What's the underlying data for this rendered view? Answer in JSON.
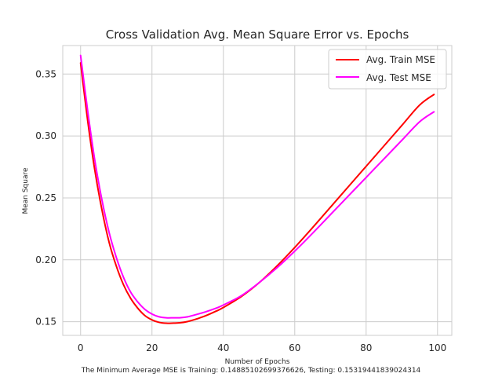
{
  "chart_data": {
    "type": "line",
    "title": "Cross Validation Avg. Mean Square Error vs. Epochs",
    "xlabel": "Number of Epochs",
    "ylabel": "Mean Square",
    "footnote": "The Minimum Average MSE is Training: 0.14885102699376626, Testing: 0.15319441839024314",
    "xlim": [
      -5,
      104
    ],
    "ylim": [
      0.139,
      0.373
    ],
    "xticks": [
      0,
      20,
      40,
      60,
      80,
      100
    ],
    "xtick_labels": [
      "0",
      "20",
      "40",
      "60",
      "80",
      "100"
    ],
    "yticks": [
      0.15,
      0.2,
      0.25,
      0.3,
      0.35
    ],
    "ytick_labels": [
      "0.15",
      "0.20",
      "0.25",
      "0.30",
      "0.35"
    ],
    "grid": true,
    "legend_position": "top-right",
    "x": [
      0,
      2,
      4,
      6,
      8,
      10,
      12,
      14,
      16,
      18,
      20,
      22,
      24,
      26,
      28,
      30,
      32,
      35,
      38,
      40,
      45,
      50,
      55,
      60,
      65,
      70,
      75,
      80,
      85,
      90,
      95,
      99
    ],
    "series": [
      {
        "name": "Avg. Train MSE",
        "color": "#ff0000",
        "values": [
          0.359,
          0.312,
          0.272,
          0.24,
          0.214,
          0.195,
          0.18,
          0.169,
          0.161,
          0.155,
          0.1515,
          0.1495,
          0.1488,
          0.1489,
          0.1492,
          0.1502,
          0.1518,
          0.1548,
          0.1586,
          0.1615,
          0.1703,
          0.1815,
          0.195,
          0.21,
          0.226,
          0.2425,
          0.259,
          0.2755,
          0.292,
          0.3085,
          0.325,
          0.3335
        ]
      },
      {
        "name": "Avg. Test MSE",
        "color": "#ff00ff",
        "values": [
          0.365,
          0.32,
          0.28,
          0.248,
          0.222,
          0.202,
          0.186,
          0.174,
          0.166,
          0.16,
          0.1562,
          0.154,
          0.1532,
          0.1532,
          0.1533,
          0.154,
          0.1555,
          0.158,
          0.161,
          0.1635,
          0.171,
          0.1815,
          0.1935,
          0.207,
          0.2215,
          0.2365,
          0.2515,
          0.2665,
          0.2815,
          0.2965,
          0.3115,
          0.3195
        ]
      }
    ]
  }
}
